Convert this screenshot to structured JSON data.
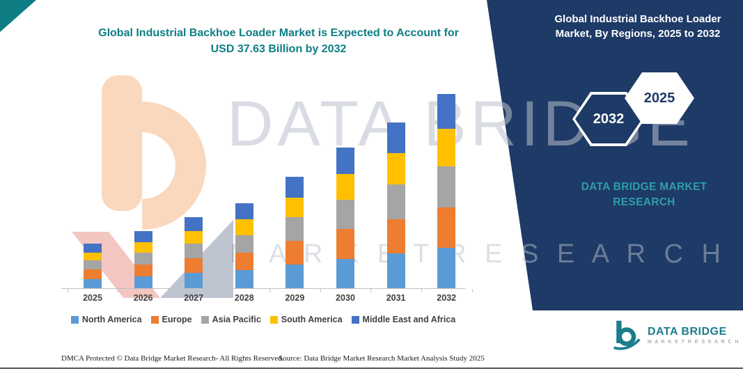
{
  "header": {
    "title_line1": "Global Industrial Backhoe Loader Market is Expected to Account for",
    "title_line2": "USD 37.63 Billion by 2032"
  },
  "side_panel": {
    "heading": "Global Industrial Backhoe Loader Market, By Regions, 2025 to 2032",
    "hexagon_back": "2032",
    "hexagon_front": "2025",
    "brand_line1": "DATA BRIDGE MARKET",
    "brand_line2": "RESEARCH"
  },
  "watermark": {
    "line1": "DATA BRIDGE",
    "line2": "M A R K E T   R E S E A R C H"
  },
  "footer": {
    "dmca_text": "DMCA Protected © Data Bridge Market Research-  All Rights Reserved.",
    "source_text": "Source: Data Bridge Market Research  Market Analysis Study 2025",
    "brand_name": "DATA BRIDGE",
    "brand_tagline": "M A R K E T   R E S E A R C H"
  },
  "colors": {
    "panel_navy": "#1e3a66",
    "title_teal": "#0e7e84",
    "brand_teal": "#2f9ea8"
  },
  "chart_data": {
    "type": "bar",
    "stacked": true,
    "title": "Global Industrial Backhoe Loader Market is Expected to Account for USD 37.63 Billion by 2032",
    "unit": "USD Billion",
    "total_2032": 37.63,
    "categories": [
      "2025",
      "2026",
      "2027",
      "2028",
      "2029",
      "2030",
      "2031",
      "2032"
    ],
    "series": [
      {
        "name": "North America",
        "color": "#5B9BD5",
        "values": [
          1.8,
          2.3,
          3.0,
          3.5,
          4.6,
          5.7,
          6.7,
          7.8
        ]
      },
      {
        "name": "Europe",
        "color": "#ED7D31",
        "values": [
          1.8,
          2.3,
          2.8,
          3.4,
          4.6,
          5.7,
          6.7,
          7.8
        ]
      },
      {
        "name": "Asia Pacific",
        "color": "#A5A5A5",
        "values": [
          1.8,
          2.3,
          2.8,
          3.4,
          4.5,
          5.7,
          6.7,
          8.0
        ]
      },
      {
        "name": "South America",
        "color": "#FFC000",
        "values": [
          1.5,
          2.0,
          2.4,
          3.1,
          3.9,
          5.0,
          6.1,
          7.3
        ]
      },
      {
        "name": "Middle East and Africa",
        "color": "#4472C4",
        "values": [
          1.7,
          2.2,
          2.7,
          3.1,
          4.0,
          5.1,
          5.9,
          6.7
        ]
      }
    ],
    "legend_position": "bottom",
    "y_axis_visible": false,
    "x_axis_visible": true
  }
}
